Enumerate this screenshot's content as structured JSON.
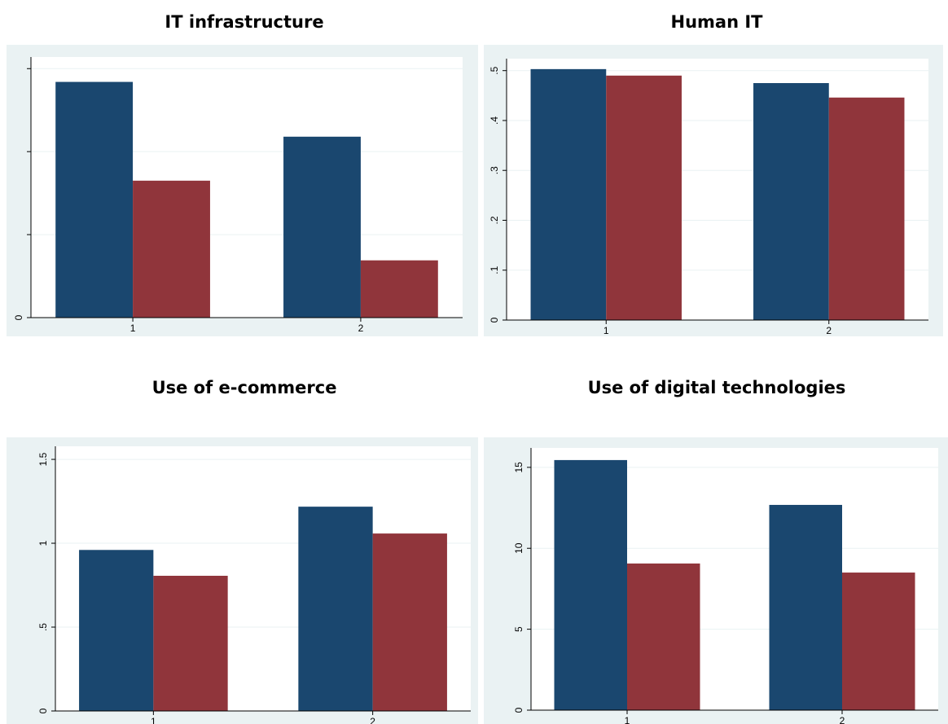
{
  "chart_data": [
    {
      "type": "bar",
      "title": "IT infrastructure",
      "categories": [
        "1",
        "2"
      ],
      "series": [
        {
          "color": "#1a476f",
          "values": [
            2.84,
            2.18
          ]
        },
        {
          "color": "#90353b",
          "values": [
            1.65,
            0.69
          ]
        }
      ],
      "ylim": [
        0,
        3.14
      ],
      "yticks": [
        0,
        {
          "value": 1,
          "label": null
        },
        {
          "value": 2,
          "label": null
        },
        {
          "value": 3,
          "label": null
        }
      ],
      "grid": true
    },
    {
      "type": "bar",
      "title": "Human IT",
      "categories": [
        "1",
        "2"
      ],
      "series": [
        {
          "color": "#1a476f",
          "values": [
            0.503,
            0.475
          ]
        },
        {
          "color": "#90353b",
          "values": [
            0.49,
            0.446
          ]
        }
      ],
      "ylim": [
        0,
        0.524
      ],
      "yticks": [
        0,
        {
          "value": 0.1,
          "label": ".1"
        },
        {
          "value": 0.2,
          "label": ".2"
        },
        {
          "value": 0.3,
          "label": ".3"
        },
        {
          "value": 0.4,
          "label": ".4"
        },
        {
          "value": 0.5,
          "label": ".5"
        }
      ],
      "grid": true
    },
    {
      "type": "bar",
      "title": "Use of e-commerce",
      "categories": [
        "1",
        "2"
      ],
      "series": [
        {
          "color": "#1a476f",
          "values": [
            0.96,
            1.218
          ]
        },
        {
          "color": "#90353b",
          "values": [
            0.806,
            1.058
          ]
        }
      ],
      "ylim": [
        0,
        1.578
      ],
      "yticks": [
        0,
        {
          "value": 0.5,
          "label": ".5"
        },
        1,
        {
          "value": 1.5,
          "label": "1.5"
        }
      ],
      "grid": true
    },
    {
      "type": "bar",
      "title": "Use of digital technologies",
      "categories": [
        "1",
        "2"
      ],
      "series": [
        {
          "color": "#1a476f",
          "values": [
            15.45,
            12.68
          ]
        },
        {
          "color": "#90353b",
          "values": [
            9.06,
            8.5
          ]
        }
      ],
      "ylim": [
        0,
        16.2
      ],
      "yticks": [
        0,
        5,
        10,
        15
      ],
      "grid": true
    }
  ]
}
